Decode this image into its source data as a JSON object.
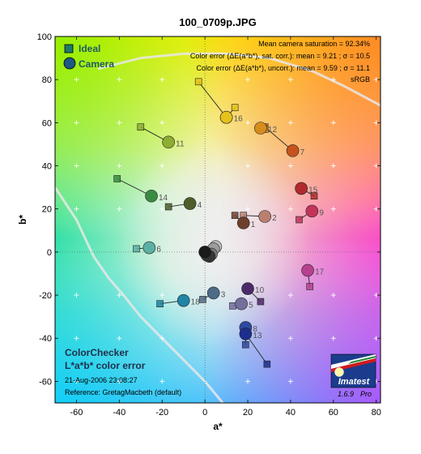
{
  "chart_data": {
    "type": "scatter",
    "title": "100_0709p.JPG",
    "xlabel": "a*",
    "ylabel": "b*",
    "xlim": [
      -70,
      82
    ],
    "ylim": [
      -70,
      100
    ],
    "xticks": [
      -60,
      -40,
      -20,
      0,
      20,
      40,
      60,
      80
    ],
    "yticks": [
      -60,
      -40,
      -20,
      0,
      20,
      40,
      60,
      80,
      100
    ],
    "legend": {
      "position": "top-left",
      "entries": [
        {
          "label": "Ideal",
          "marker": "square",
          "color": "#1f6f7a"
        },
        {
          "label": "Camera",
          "marker": "circle",
          "color": "#1f5a84"
        }
      ]
    },
    "stats": [
      "Mean camera saturation = 92.34%",
      "Color error (ΔE(a*b*), sat. corr.):  mean = 9.21 ;  σ = 10.5",
      "Color error (ΔE(a*b*), uncorr.):  mean = 9.59 ;  σ = 11.1",
      "sRGB"
    ],
    "footer": {
      "title_line1": "ColorChecker",
      "title_line2": "L*a*b* color error",
      "date": "21-Aug-2006 23:08:27",
      "reference": "Reference: GretagMacbeth (default)"
    },
    "logo": {
      "name": "Imatest",
      "version": "1.6.9",
      "edition": "Pro"
    },
    "points": [
      {
        "id": "1",
        "ideal": [
          14,
          17
        ],
        "camera": [
          18,
          13.5
        ],
        "color": "#6e3f2d"
      },
      {
        "id": "2",
        "ideal": [
          18,
          17
        ],
        "camera": [
          28,
          16.5
        ],
        "color": "#b98070"
      },
      {
        "id": "3",
        "ideal": [
          -1,
          -22
        ],
        "camera": [
          4,
          -19
        ],
        "color": "#4d6a86"
      },
      {
        "id": "4",
        "ideal": [
          -17,
          21
        ],
        "camera": [
          -7,
          22.5
        ],
        "color": "#4e5e2a"
      },
      {
        "id": "5",
        "ideal": [
          13,
          -25
        ],
        "camera": [
          17,
          -24
        ],
        "color": "#756f9e"
      },
      {
        "id": "6",
        "ideal": [
          -32,
          1.5
        ],
        "camera": [
          -26,
          2
        ],
        "color": "#5ab0a4"
      },
      {
        "id": "7",
        "ideal": [
          28,
          58
        ],
        "camera": [
          41,
          47
        ],
        "color": "#c6531e"
      },
      {
        "id": "8",
        "ideal": [
          19,
          -43
        ],
        "camera": [
          19,
          -35
        ],
        "color": "#2e49a2"
      },
      {
        "id": "9",
        "ideal": [
          44,
          15
        ],
        "camera": [
          50,
          19
        ],
        "color": "#c2345a"
      },
      {
        "id": "10",
        "ideal": [
          26,
          -23
        ],
        "camera": [
          20,
          -17
        ],
        "color": "#4c2a6a"
      },
      {
        "id": "11",
        "ideal": [
          -30,
          58
        ],
        "camera": [
          -17,
          51
        ],
        "color": "#8eae32"
      },
      {
        "id": "12",
        "ideal": [
          28,
          57
        ],
        "camera": [
          26,
          57.5
        ],
        "color": "#d68d1e"
      },
      {
        "id": "13",
        "ideal": [
          29,
          -52
        ],
        "camera": [
          19,
          -38
        ],
        "color": "#1e2e8c"
      },
      {
        "id": "14",
        "ideal": [
          -41,
          34
        ],
        "camera": [
          -25,
          26
        ],
        "color": "#3a8b42"
      },
      {
        "id": "15",
        "ideal": [
          51,
          26
        ],
        "camera": [
          45,
          29.5
        ],
        "color": "#b12a2d"
      },
      {
        "id": "16",
        "ideal": [
          14,
          67
        ],
        "camera": [
          10,
          62.5
        ],
        "color": "#e5c21a"
      },
      {
        "id": "17",
        "ideal": [
          49,
          -16
        ],
        "camera": [
          48,
          -8.5
        ],
        "color": "#b6418f"
      },
      {
        "id": "18",
        "ideal": [
          -21,
          -24
        ],
        "camera": [
          -10,
          -22.5
        ],
        "color": "#1f84a6"
      },
      {
        "id": "",
        "ideal": [
          -3,
          79
        ],
        "camera": [
          10,
          62.5
        ],
        "color": "#e5c21a"
      }
    ],
    "neutrals": [
      {
        "ideal": [
          0,
          0
        ],
        "camera": [
          5,
          2.5
        ],
        "color": "#c0c0c0"
      },
      {
        "ideal": [
          0,
          0
        ],
        "camera": [
          4,
          1.5
        ],
        "color": "#9c9c9c"
      },
      {
        "ideal": [
          0,
          0
        ],
        "camera": [
          3,
          -1
        ],
        "color": "#7a7a7a"
      },
      {
        "ideal": [
          0,
          0
        ],
        "camera": [
          1,
          -1.5
        ],
        "color": "#555555"
      },
      {
        "ideal": [
          0,
          0
        ],
        "camera": [
          2,
          -2
        ],
        "color": "#343434"
      },
      {
        "ideal": [
          0,
          0
        ],
        "camera": [
          0,
          0
        ],
        "color": "#1a1a1a"
      }
    ]
  }
}
